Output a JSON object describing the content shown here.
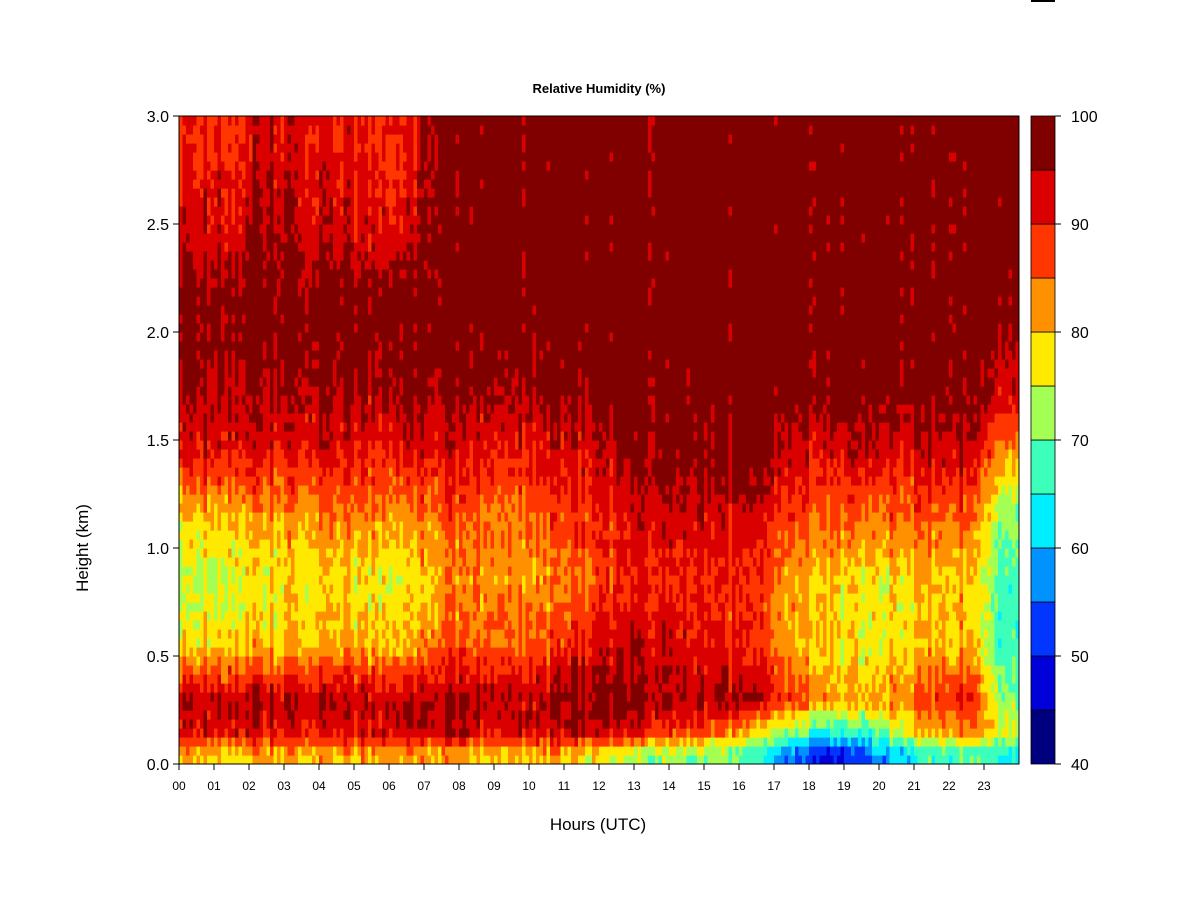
{
  "chart_data": {
    "type": "heatmap",
    "title": "Relative Humidity (%)",
    "xlabel": "Hours (UTC)",
    "ylabel": "Height (km)",
    "x_ticks": [
      "00",
      "01",
      "02",
      "03",
      "04",
      "05",
      "06",
      "07",
      "08",
      "09",
      "10",
      "11",
      "12",
      "13",
      "14",
      "15",
      "16",
      "17",
      "18",
      "19",
      "20",
      "21",
      "22",
      "23"
    ],
    "xlim": [
      0,
      24
    ],
    "y_ticks": [
      "0.0",
      "0.5",
      "1.0",
      "1.5",
      "2.0",
      "2.5",
      "3.0"
    ],
    "ylim": [
      0,
      3.0
    ],
    "colorbar": {
      "ticks": [
        "40",
        "50",
        "60",
        "70",
        "80",
        "90",
        "100"
      ],
      "range": [
        40,
        100
      ],
      "levels": [
        40,
        45,
        50,
        55,
        60,
        65,
        70,
        75,
        80,
        85,
        90,
        95,
        100
      ],
      "colors": [
        "#00007f",
        "#0000d9",
        "#0036ff",
        "#0092ff",
        "#00eeff",
        "#3cffbb",
        "#a3ff53",
        "#ffe900",
        "#ff9100",
        "#ff3600",
        "#da0000",
        "#800000"
      ]
    },
    "height_km": [
      0.05,
      0.15,
      0.3,
      0.55,
      0.85,
      1.15,
      1.45,
      1.75,
      2.1,
      2.5,
      2.85
    ],
    "hours": [
      0.5,
      1.5,
      2.5,
      3.5,
      4.5,
      5.5,
      6.5,
      7.5,
      8.5,
      9.5,
      10.5,
      11.5,
      12.5,
      13.5,
      14.5,
      15.5,
      16.5,
      17.5,
      18.5,
      19.5,
      20.5,
      21.5,
      22.5,
      23.5
    ],
    "rh_percent": [
      [
        82,
        78,
        82,
        82,
        80,
        82,
        82,
        82,
        80,
        80,
        80,
        78,
        74,
        72,
        72,
        70,
        66,
        56,
        48,
        52,
        62,
        66,
        70,
        66
      ],
      [
        92,
        93,
        92,
        92,
        92,
        93,
        93,
        95,
        93,
        92,
        93,
        94,
        92,
        90,
        88,
        84,
        78,
        72,
        66,
        66,
        74,
        80,
        84,
        76
      ],
      [
        94,
        95,
        95,
        94,
        94,
        94,
        95,
        96,
        96,
        94,
        95,
        96,
        96,
        97,
        96,
        94,
        94,
        88,
        82,
        80,
        84,
        88,
        92,
        72
      ],
      [
        78,
        80,
        80,
        80,
        82,
        80,
        80,
        86,
        86,
        86,
        86,
        90,
        92,
        94,
        92,
        90,
        88,
        82,
        80,
        76,
        78,
        80,
        82,
        68
      ],
      [
        74,
        76,
        77,
        78,
        78,
        77,
        76,
        82,
        84,
        82,
        82,
        84,
        88,
        90,
        90,
        88,
        88,
        82,
        80,
        76,
        78,
        80,
        80,
        68
      ],
      [
        80,
        82,
        82,
        82,
        84,
        84,
        82,
        86,
        86,
        84,
        86,
        88,
        90,
        94,
        94,
        92,
        92,
        88,
        86,
        84,
        86,
        86,
        86,
        72
      ],
      [
        92,
        92,
        92,
        92,
        92,
        90,
        92,
        92,
        92,
        90,
        92,
        92,
        94,
        98,
        98,
        96,
        98,
        94,
        92,
        94,
        92,
        94,
        94,
        84
      ],
      [
        96,
        96,
        96,
        96,
        96,
        96,
        97,
        98,
        97,
        96,
        97,
        97,
        98,
        99,
        99,
        99,
        99,
        99,
        98,
        99,
        99,
        99,
        98,
        94
      ],
      [
        98,
        99,
        99,
        99,
        99,
        99,
        99,
        99,
        99,
        99,
        99,
        99,
        99,
        99,
        99,
        99,
        99,
        99,
        99,
        99,
        99,
        99,
        99,
        99
      ],
      [
        93,
        93,
        96,
        94,
        93,
        92,
        92,
        99,
        99,
        99,
        99,
        99,
        99,
        99,
        99,
        99,
        99,
        99,
        99,
        99,
        99,
        99,
        99,
        99
      ],
      [
        90,
        90,
        94,
        92,
        91,
        90,
        90,
        99,
        99,
        99,
        99,
        99,
        99,
        99,
        99,
        99,
        99,
        99,
        99,
        99,
        99,
        99,
        99,
        99
      ]
    ]
  }
}
